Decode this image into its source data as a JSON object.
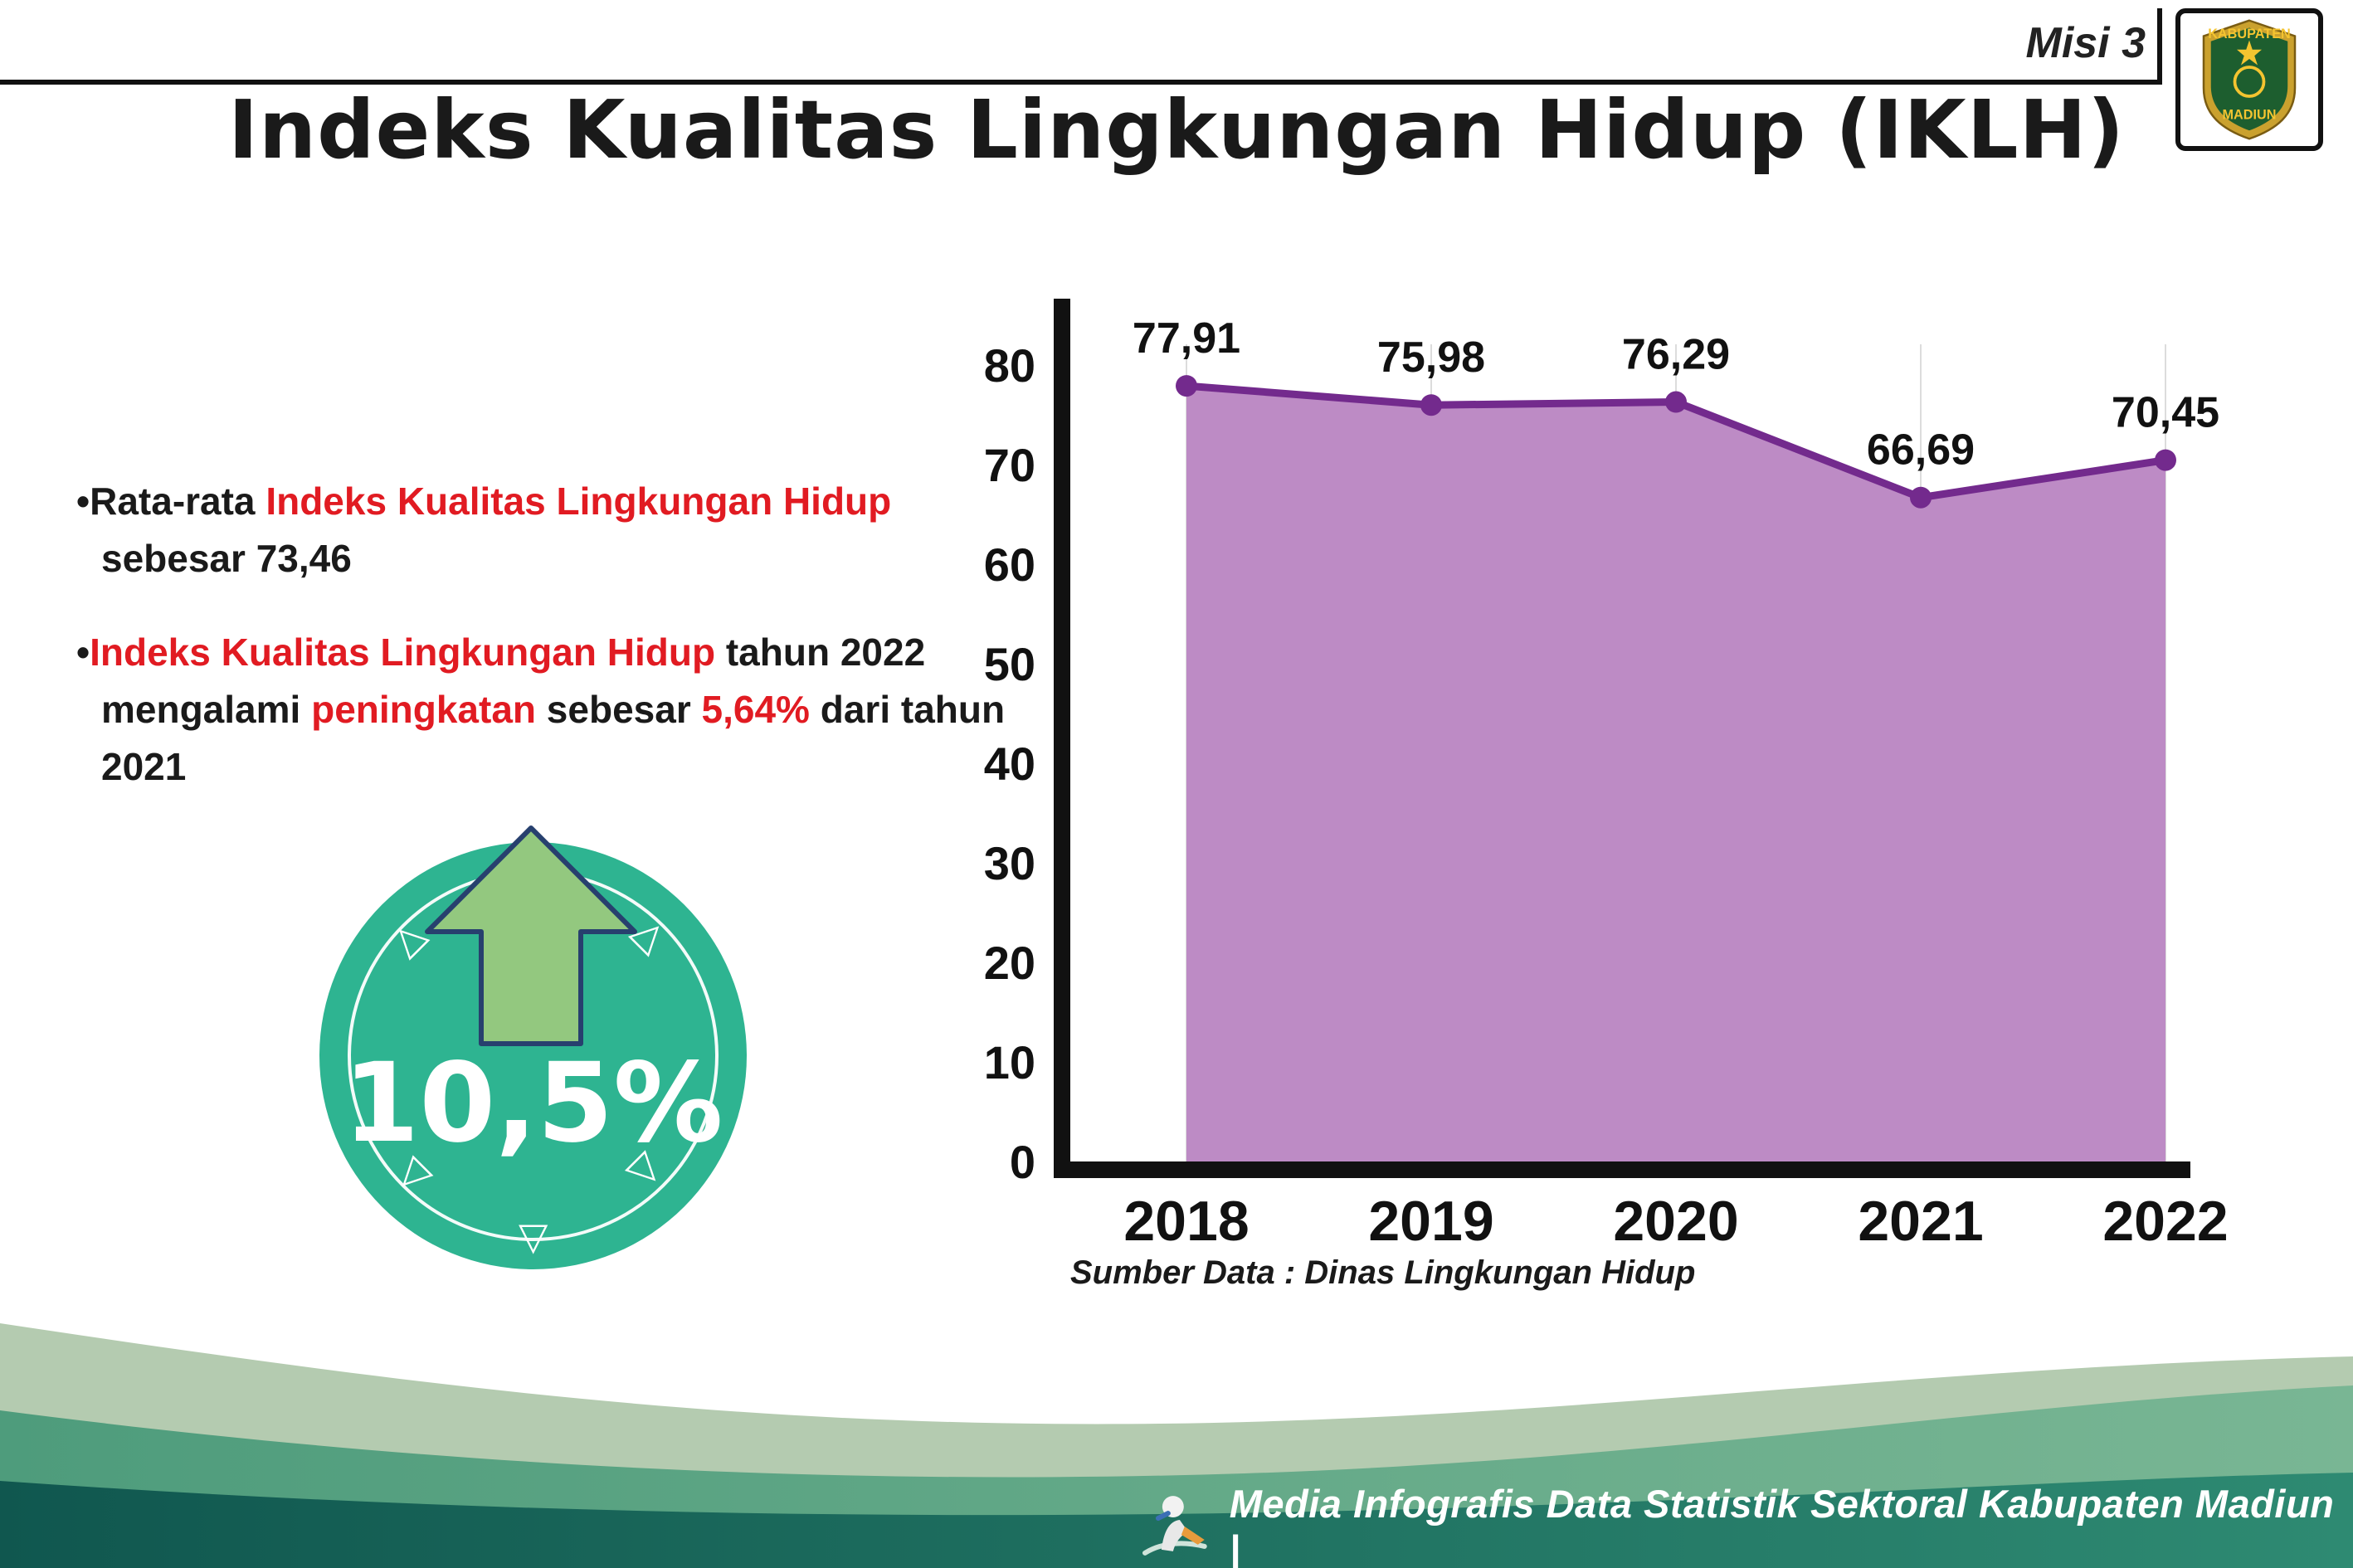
{
  "header": {
    "misi_label": "Misi 3",
    "title": "Indeks Kualitas Lingkungan Hidup (IKLH)"
  },
  "logo": {
    "top_text": "KABUPATEN",
    "bottom_text": "MADIUN"
  },
  "bullets": [
    {
      "segments": [
        {
          "text": "Rata-rata "
        },
        {
          "text": "Indeks Kualitas Lingkungan Hidup"
        },
        {
          "text": " sebesar 73,46"
        }
      ]
    },
    {
      "segments": [
        {
          "text": "Indeks Kualitas Lingkungan Hidup"
        },
        {
          "text": " tahun 2022 mengalami "
        },
        {
          "text": "peningkatan"
        },
        {
          "text": " sebesar "
        },
        {
          "text": "5,64%"
        },
        {
          "text": " dari tahun 2021"
        }
      ]
    }
  ],
  "badge": {
    "value": "10,5%"
  },
  "chart_data": {
    "type": "area",
    "categories": [
      "2018",
      "2019",
      "2020",
      "2021",
      "2022"
    ],
    "values": [
      77.91,
      75.98,
      76.29,
      66.69,
      70.45
    ],
    "value_labels": [
      "77,91",
      "75,98",
      "76,29",
      "66,69",
      "70,45"
    ],
    "y_ticks": [
      0,
      10,
      20,
      30,
      40,
      50,
      60,
      70,
      80
    ],
    "ylim": [
      0,
      80
    ],
    "area_color": "#bd8bc5",
    "line_color": "#732a8d",
    "grid": "vertical-light",
    "legend": "none",
    "source": "Sumber Data : Dinas Lingkungan Hidup"
  },
  "footer": {
    "caption": "Media Infografis Data Statistik Sektoral Kabupaten Madiun |"
  }
}
